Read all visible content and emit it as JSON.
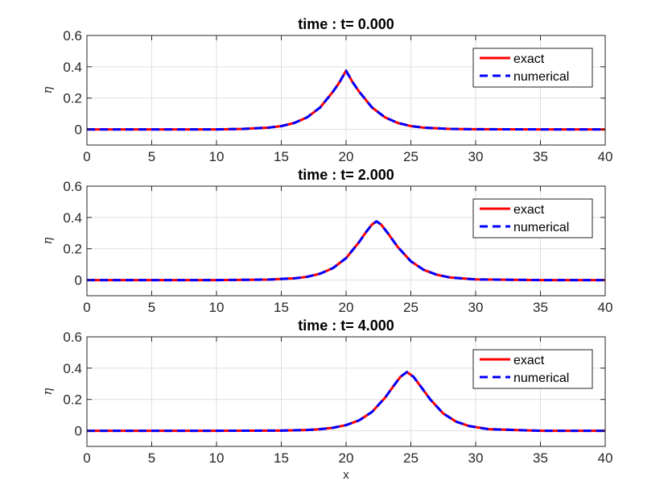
{
  "chart_data": [
    {
      "type": "line",
      "title": "time : t= 0.000",
      "xlabel": "",
      "ylabel": "η",
      "xlim": [
        0,
        40
      ],
      "ylim": [
        -0.1,
        0.6
      ],
      "xticks": [
        "0",
        "5",
        "10",
        "15",
        "20",
        "25",
        "30",
        "35",
        "40"
      ],
      "yticks": [
        "0",
        "0.2",
        "0.4",
        "0.6"
      ],
      "grid": true,
      "legend": "top-right",
      "series": [
        {
          "name": "exact",
          "color": "#ff0000",
          "style": "solid",
          "x": [
            0,
            5,
            10,
            12,
            14,
            15,
            16,
            17,
            18,
            19,
            19.5,
            20,
            20.5,
            21,
            22,
            23,
            24,
            25,
            26,
            28,
            30,
            35,
            40
          ],
          "y": [
            0,
            0,
            0,
            0.003,
            0.011,
            0.021,
            0.041,
            0.077,
            0.14,
            0.242,
            0.302,
            0.375,
            0.302,
            0.242,
            0.14,
            0.077,
            0.041,
            0.021,
            0.011,
            0.003,
            0.001,
            0,
            0
          ]
        },
        {
          "name": "numerical",
          "color": "#0000ff",
          "style": "dashed",
          "x": [
            0,
            5,
            10,
            12,
            14,
            15,
            16,
            17,
            18,
            19,
            19.5,
            20,
            20.5,
            21,
            22,
            23,
            24,
            25,
            26,
            28,
            30,
            35,
            40
          ],
          "y": [
            0,
            0,
            0,
            0.003,
            0.011,
            0.021,
            0.041,
            0.077,
            0.14,
            0.242,
            0.302,
            0.375,
            0.302,
            0.242,
            0.14,
            0.077,
            0.041,
            0.021,
            0.011,
            0.003,
            0.001,
            0,
            0
          ]
        }
      ]
    },
    {
      "type": "line",
      "title": "time : t= 2.000",
      "xlabel": "",
      "ylabel": "η",
      "xlim": [
        0,
        40
      ],
      "ylim": [
        -0.1,
        0.6
      ],
      "xticks": [
        "0",
        "5",
        "10",
        "15",
        "20",
        "25",
        "30",
        "35",
        "40"
      ],
      "yticks": [
        "0",
        "0.2",
        "0.4",
        "0.6"
      ],
      "grid": true,
      "legend": "top-right",
      "series": [
        {
          "name": "exact",
          "color": "#ff0000",
          "style": "solid",
          "x": [
            0,
            5,
            10,
            14,
            16,
            17,
            18,
            19,
            20,
            21,
            21.5,
            22,
            22.35,
            22.7,
            23.2,
            24,
            25,
            26,
            27,
            28,
            30,
            35,
            40
          ],
          "y": [
            0,
            0,
            0,
            0.003,
            0.011,
            0.021,
            0.041,
            0.077,
            0.14,
            0.242,
            0.302,
            0.355,
            0.375,
            0.355,
            0.302,
            0.21,
            0.12,
            0.065,
            0.034,
            0.017,
            0.004,
            0,
            0
          ]
        },
        {
          "name": "numerical",
          "color": "#0000ff",
          "style": "dashed",
          "x": [
            0,
            5,
            10,
            14,
            16,
            17,
            18,
            19,
            20,
            21,
            21.5,
            22,
            22.35,
            22.7,
            23.2,
            24,
            25,
            26,
            27,
            28,
            30,
            35,
            40
          ],
          "y": [
            0,
            0,
            0,
            0.003,
            0.011,
            0.021,
            0.041,
            0.077,
            0.14,
            0.242,
            0.302,
            0.355,
            0.375,
            0.355,
            0.302,
            0.21,
            0.12,
            0.065,
            0.034,
            0.017,
            0.004,
            0,
            0
          ]
        }
      ]
    },
    {
      "type": "line",
      "title": "time : t= 4.000",
      "xlabel": "x",
      "ylabel": "η",
      "xlim": [
        0,
        40
      ],
      "ylim": [
        -0.1,
        0.6
      ],
      "xticks": [
        "0",
        "5",
        "10",
        "15",
        "20",
        "25",
        "30",
        "35",
        "40"
      ],
      "yticks": [
        "0",
        "0.2",
        "0.4",
        "0.6"
      ],
      "grid": true,
      "legend": "top-right",
      "series": [
        {
          "name": "exact",
          "color": "#ff0000",
          "style": "solid",
          "x": [
            0,
            5,
            10,
            15,
            17,
            18,
            19,
            20,
            21,
            22,
            23,
            23.7,
            24.2,
            24.7,
            25.2,
            25.7,
            26.5,
            27.5,
            28.5,
            29.5,
            31,
            35,
            40
          ],
          "y": [
            0,
            0,
            0,
            0.001,
            0.005,
            0.01,
            0.019,
            0.036,
            0.066,
            0.12,
            0.21,
            0.29,
            0.345,
            0.375,
            0.345,
            0.29,
            0.2,
            0.11,
            0.058,
            0.03,
            0.01,
            0,
            0
          ]
        },
        {
          "name": "numerical",
          "color": "#0000ff",
          "style": "dashed",
          "x": [
            0,
            5,
            10,
            15,
            17,
            18,
            19,
            20,
            21,
            22,
            23,
            23.7,
            24.2,
            24.7,
            25.2,
            25.7,
            26.5,
            27.5,
            28.5,
            29.5,
            31,
            35,
            40
          ],
          "y": [
            0,
            0,
            0,
            0.001,
            0.005,
            0.01,
            0.019,
            0.036,
            0.066,
            0.12,
            0.21,
            0.29,
            0.345,
            0.375,
            0.345,
            0.29,
            0.2,
            0.11,
            0.058,
            0.03,
            0.01,
            0,
            0
          ]
        }
      ]
    }
  ]
}
